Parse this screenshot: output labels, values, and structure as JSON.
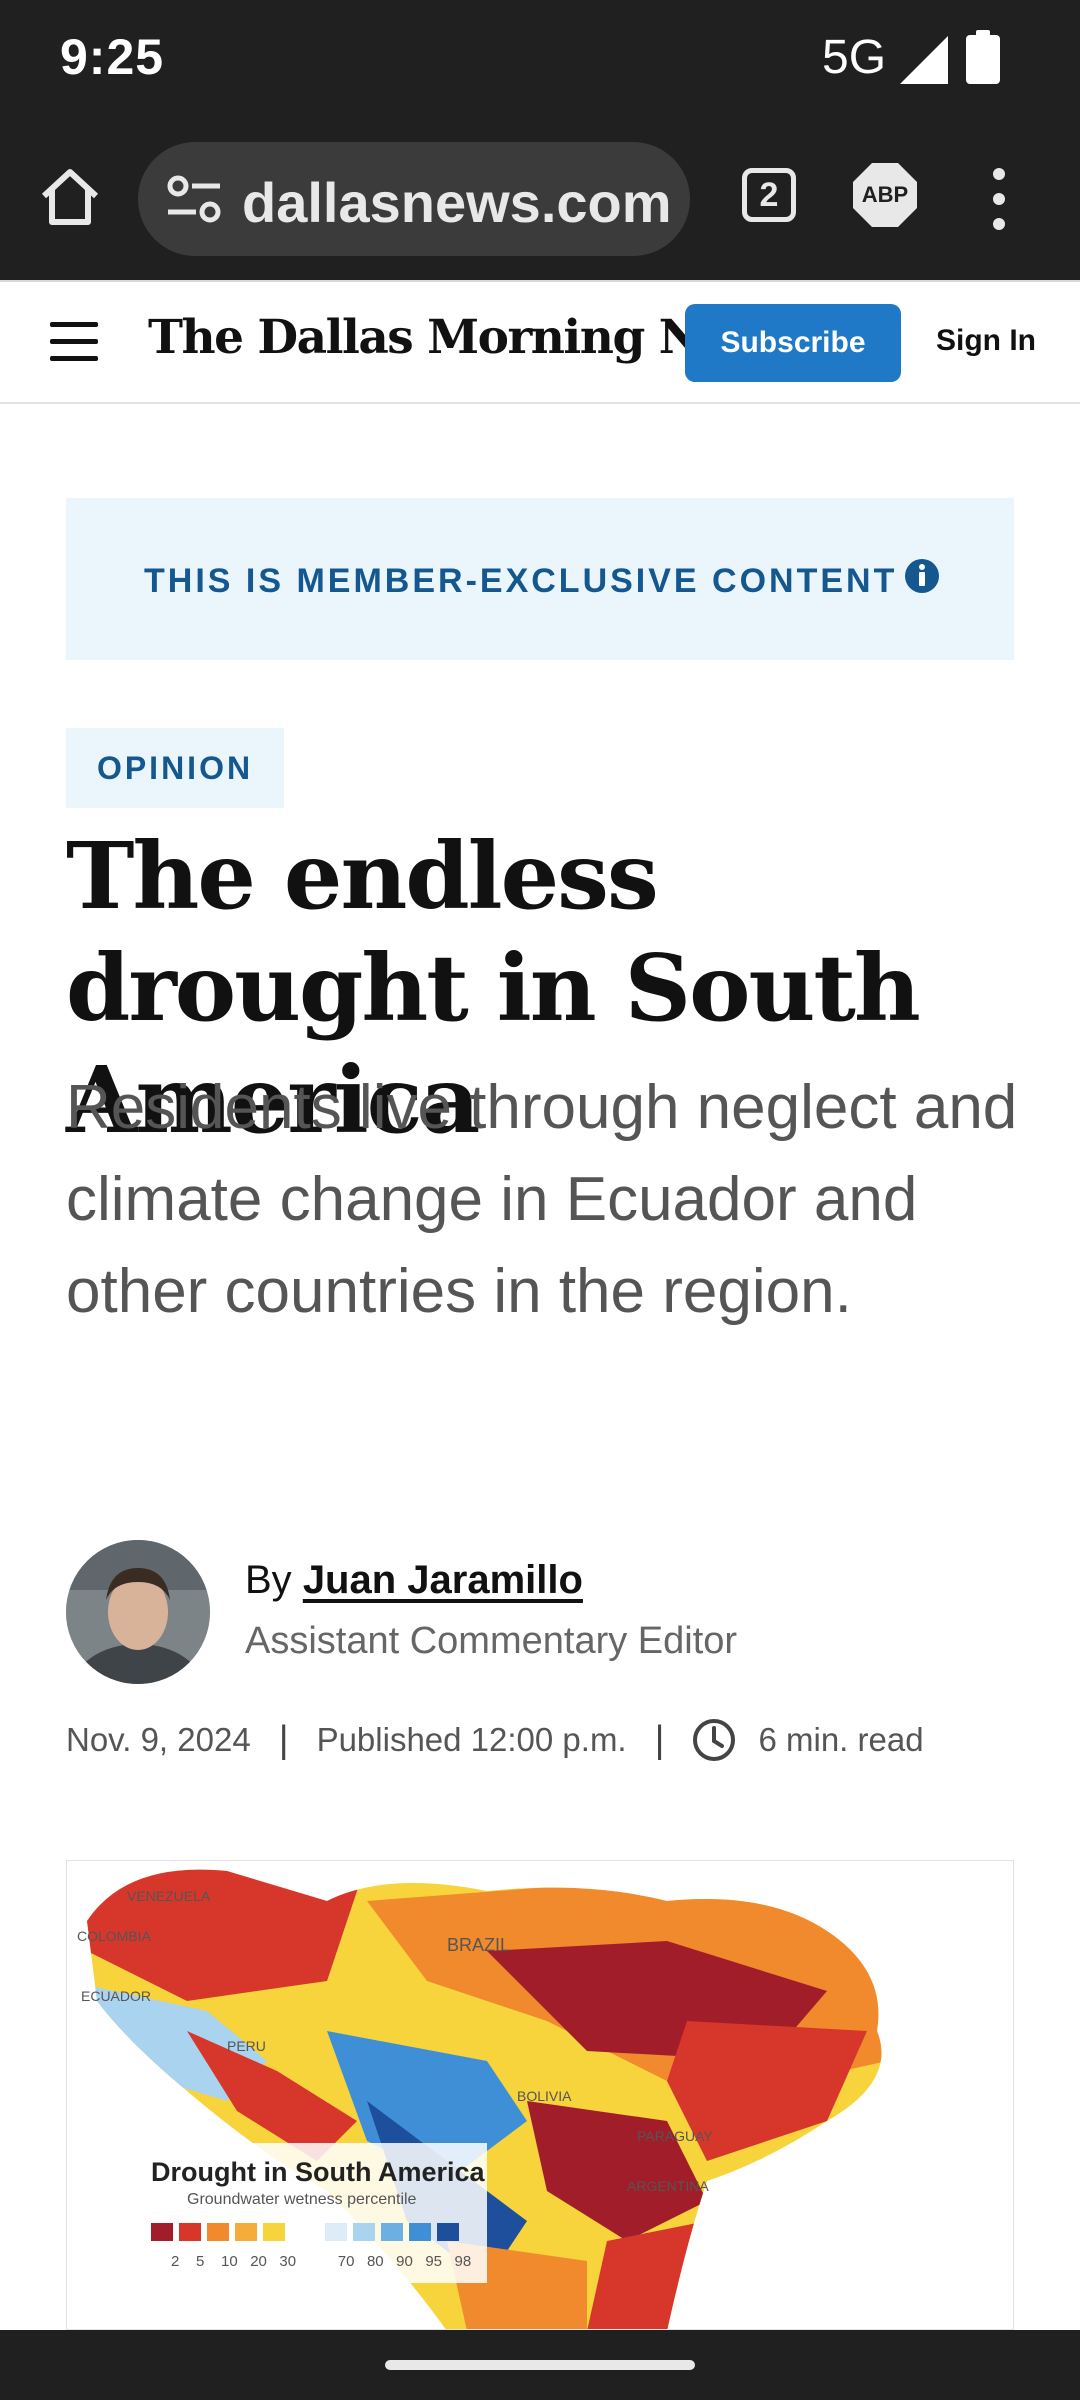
{
  "status_bar": {
    "time": "9:25",
    "network": "5G",
    "icons": [
      "signal-icon",
      "battery-icon"
    ]
  },
  "browser": {
    "url": "dallasnews.com",
    "tab_count": "2",
    "extension_label": "ABP",
    "icons": [
      "home-icon",
      "site-settings-icon",
      "tabs-icon",
      "abp-icon",
      "more-options-icon"
    ]
  },
  "site_header": {
    "logo": "The Dallas Morning News",
    "subscribe_label": "Subscribe",
    "signin_label": "Sign In",
    "icons": [
      "hamburger-menu-icon"
    ]
  },
  "member_banner": {
    "text": "THIS IS MEMBER-EXCLUSIVE CONTENT",
    "icon": "info-icon"
  },
  "article": {
    "section_tag": "OPINION",
    "headline": "The endless drought in South America",
    "subhead": "Residents live through neglect and climate change in Ecuador and other countries in the region.",
    "byline": {
      "prefix": "By",
      "author": "Juan Jaramillo",
      "role": "Assistant Commentary Editor"
    },
    "meta": {
      "date": "Nov. 9, 2024",
      "separator": "|",
      "published": "Published 12:00 p.m.",
      "read_time": "6 min. read",
      "icon": "clock-icon"
    },
    "image": {
      "legend_title": "Drought in South America",
      "legend_subtitle": "Groundwater wetness percentile",
      "legend_ticks": "2    5    10   20   30          70   80   90   95   98",
      "country_labels": [
        "VENEZUELA",
        "COLOMBIA",
        "ECUADOR",
        "PERU",
        "BRAZIL",
        "BOLIVIA",
        "PARAGUAY",
        "ARGENTINA"
      ],
      "colors": {
        "dry_dark": "#a11d2a",
        "dry": "#d7362b",
        "orange": "#f08a2c",
        "yellow": "#f7d33c",
        "light_blue": "#a9d3ef",
        "blue": "#3f8fd6",
        "dark_blue": "#1d4f9c"
      }
    }
  }
}
